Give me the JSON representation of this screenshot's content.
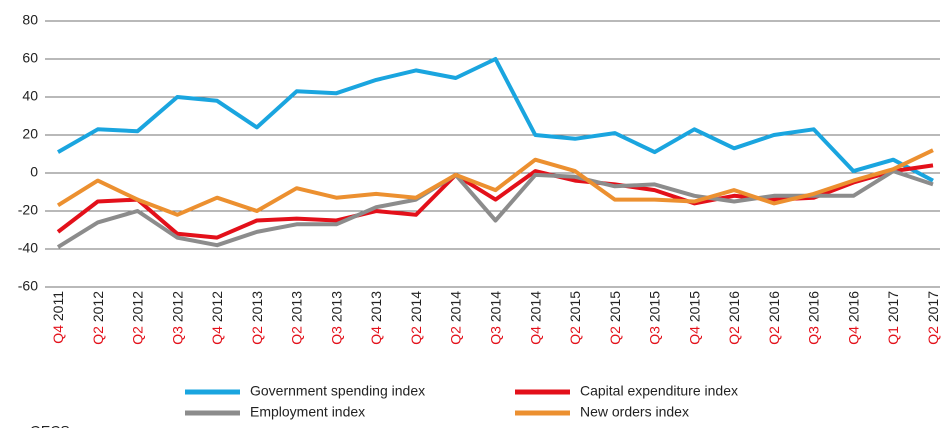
{
  "chart_data": {
    "type": "line",
    "categories": [
      {
        "quarter": "Q4",
        "year": "2011"
      },
      {
        "quarter": "Q2",
        "year": "2012"
      },
      {
        "quarter": "Q2",
        "year": "2012"
      },
      {
        "quarter": "Q3",
        "year": "2012"
      },
      {
        "quarter": "Q4",
        "year": "2012"
      },
      {
        "quarter": "Q2",
        "year": "2013"
      },
      {
        "quarter": "Q2",
        "year": "2013"
      },
      {
        "quarter": "Q3",
        "year": "2013"
      },
      {
        "quarter": "Q4",
        "year": "2013"
      },
      {
        "quarter": "Q2",
        "year": "2014"
      },
      {
        "quarter": "Q2",
        "year": "2014"
      },
      {
        "quarter": "Q3",
        "year": "2014"
      },
      {
        "quarter": "Q4",
        "year": "2014"
      },
      {
        "quarter": "Q2",
        "year": "2015"
      },
      {
        "quarter": "Q2",
        "year": "2015"
      },
      {
        "quarter": "Q3",
        "year": "2015"
      },
      {
        "quarter": "Q4",
        "year": "2015"
      },
      {
        "quarter": "Q2",
        "year": "2016"
      },
      {
        "quarter": "Q2",
        "year": "2016"
      },
      {
        "quarter": "Q3",
        "year": "2016"
      },
      {
        "quarter": "Q4",
        "year": "2016"
      },
      {
        "quarter": "Q1",
        "year": "2017"
      },
      {
        "quarter": "Q2",
        "year": "2017"
      }
    ],
    "series": [
      {
        "name": "Government spending index",
        "color": "#1aa5df",
        "values": [
          11,
          23,
          22,
          40,
          38,
          24,
          43,
          42,
          49,
          54,
          50,
          60,
          20,
          18,
          21,
          11,
          23,
          13,
          20,
          23,
          1,
          7,
          -4
        ]
      },
      {
        "name": "Capital expenditure index",
        "color": "#e3101a",
        "values": [
          -31,
          -15,
          -14,
          -32,
          -34,
          -25,
          -24,
          -25,
          -20,
          -22,
          -1,
          -14,
          1,
          -4,
          -6,
          -9,
          -16,
          -12,
          -14,
          -13,
          -5,
          1,
          4
        ]
      },
      {
        "name": "Employment index",
        "color": "#8c8c8c",
        "values": [
          -39,
          -26,
          -20,
          -34,
          -38,
          -31,
          -27,
          -27,
          -18,
          -14,
          -1,
          -25,
          -1,
          -2,
          -7,
          -6,
          -12,
          -15,
          -12,
          -12,
          -12,
          1,
          -6
        ]
      },
      {
        "name": "New orders index",
        "color": "#ec9030",
        "values": [
          -17,
          -4,
          -14,
          -22,
          -13,
          -20,
          -8,
          -13,
          -11,
          -13,
          -1,
          -9,
          7,
          1,
          -14,
          -14,
          -15,
          -9,
          -16,
          -11,
          -4,
          2,
          12
        ]
      }
    ],
    "ylim": [
      -60,
      80
    ],
    "yticks": [
      -60,
      -40,
      -20,
      0,
      20,
      40,
      60,
      80
    ],
    "grid": true,
    "quarter_color": "#e3101a",
    "source": "OECS"
  }
}
